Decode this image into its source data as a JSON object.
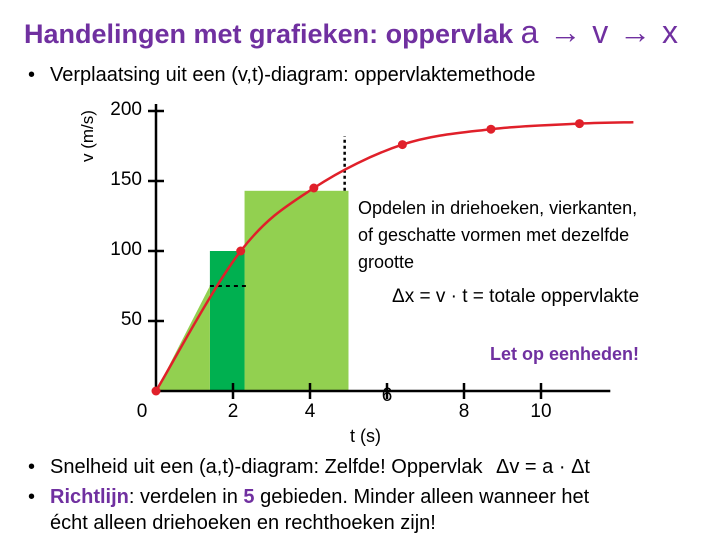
{
  "title": {
    "text": "Handelingen met grafieken: oppervlak",
    "chain": "a → v → x"
  },
  "bullet1": "Verplaatsing uit een (v,t)-diagram: oppervlaktemethode",
  "chart_data": {
    "type": "line",
    "xlabel": "t (s)",
    "ylabel": "v (m/s)",
    "x_ticks": [
      "0",
      "2",
      "4",
      "6",
      "8",
      "10"
    ],
    "y_ticks": [
      "50",
      "100",
      "150",
      "200"
    ],
    "xlim": [
      0,
      12
    ],
    "ylim": [
      0,
      200
    ],
    "points": [
      {
        "x": 0,
        "y": 0
      },
      {
        "x": 2.2,
        "y": 100
      },
      {
        "x": 4.1,
        "y": 145
      },
      {
        "x": 6.4,
        "y": 176
      },
      {
        "x": 8.7,
        "y": 187
      },
      {
        "x": 11.0,
        "y": 191
      }
    ],
    "curve_end": {
      "x": 12.4,
      "y": 192
    },
    "fill_light": "#92d050",
    "fill_dark": "#00b050",
    "curve_color": "#e0202a"
  },
  "annotation": {
    "lines": [
      "Opdelen in driehoeken, vierkanten,",
      "of geschatte vormen met dezelfde",
      "grootte"
    ],
    "formula": "Δx = v · t = totale oppervlakte",
    "units": "Let op eenheden!"
  },
  "bullet2": {
    "text": "Snelheid uit een (a,t)-diagram: Zelfde! Oppervlak",
    "formula": "Δv = a · Δt"
  },
  "bullet3": {
    "bold": "Richtlijn",
    "mid": ": verdelen in ",
    "num": "5",
    "rest": " gebieden. Minder alleen wanneer het",
    "line2": "écht alleen driehoeken en rechthoeken zijn!"
  },
  "colors": {
    "accent": "#7030a0"
  }
}
